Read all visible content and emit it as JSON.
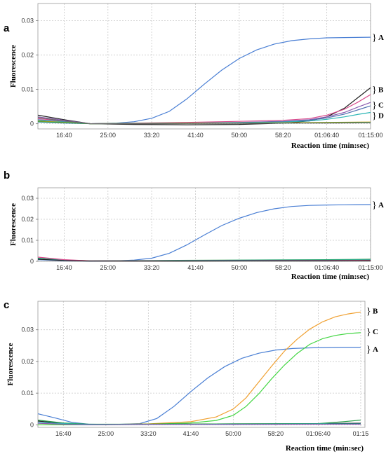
{
  "chart_data": [
    {
      "type": "line",
      "panel_label": "a",
      "ylabel": "Fluorescence",
      "xlabel": "Reaction time (min:sec)",
      "x_ticks": [
        "16:40",
        "25:00",
        "33:20",
        "41:40",
        "50:00",
        "58:20",
        "01:06:40",
        "01:15:00"
      ],
      "x_tick_seconds": [
        1000,
        1500,
        2000,
        2500,
        3000,
        3500,
        4000,
        4500
      ],
      "xlim": [
        700,
        4500
      ],
      "ylim": [
        -0.0015,
        0.035
      ],
      "y_ticks": [
        0,
        0.01,
        0.02,
        0.03
      ],
      "y_tick_labels": [
        "0",
        "0.01",
        "0.02",
        "0.03"
      ],
      "grid": true,
      "series": [
        {
          "group": "A",
          "color": "#4a7fd4",
          "x": [
            700,
            1000,
            1300,
            1600,
            1800,
            2000,
            2200,
            2400,
            2600,
            2800,
            3000,
            3200,
            3400,
            3600,
            3800,
            4000,
            4200,
            4500
          ],
          "y": [
            0.0005,
            0.0002,
            0.0,
            0.0002,
            0.0006,
            0.0016,
            0.0036,
            0.0072,
            0.0115,
            0.0156,
            0.019,
            0.0215,
            0.0232,
            0.0242,
            0.0247,
            0.025,
            0.0251,
            0.0252
          ]
        },
        {
          "group": "B",
          "color": "#202020",
          "x": [
            700,
            1000,
            1300,
            1800,
            2400,
            3000,
            3500,
            3800,
            4000,
            4200,
            4350,
            4500
          ],
          "y": [
            0.0025,
            0.0012,
            0.0,
            -0.0002,
            -0.0003,
            -0.0002,
            0.0002,
            0.0008,
            0.002,
            0.0045,
            0.0075,
            0.0105
          ]
        },
        {
          "group": "B",
          "color": "#d94a8c",
          "x": [
            700,
            1000,
            1300,
            1800,
            2400,
            3000,
            3500,
            3800,
            4000,
            4200,
            4350,
            4500
          ],
          "y": [
            0.0015,
            0.0008,
            0.0,
            0.0002,
            0.0004,
            0.0007,
            0.001,
            0.0015,
            0.0025,
            0.0042,
            0.0062,
            0.0085
          ]
        },
        {
          "group": "C",
          "color": "#8a5cb0",
          "x": [
            700,
            1000,
            1300,
            1800,
            2400,
            3000,
            3500,
            3800,
            4000,
            4200,
            4350,
            4500
          ],
          "y": [
            0.002,
            0.001,
            0.0,
            0.0001,
            0.0002,
            0.0004,
            0.0007,
            0.0012,
            0.002,
            0.0033,
            0.0048,
            0.0062
          ]
        },
        {
          "group": "C",
          "color": "#4f6fb0",
          "x": [
            700,
            1000,
            1300,
            1800,
            2400,
            3000,
            3500,
            3800,
            4000,
            4200,
            4350,
            4500
          ],
          "y": [
            0.0012,
            0.0006,
            0.0,
            0.0001,
            0.0002,
            0.0003,
            0.0006,
            0.001,
            0.0017,
            0.0028,
            0.004,
            0.0052
          ]
        },
        {
          "group": "D",
          "color": "#2bb5b5",
          "x": [
            700,
            1000,
            1300,
            1800,
            2400,
            3000,
            3500,
            3800,
            4000,
            4200,
            4350,
            4500
          ],
          "y": [
            0.001,
            0.0005,
            0.0,
            0.0001,
            0.0002,
            0.0003,
            0.0005,
            0.0008,
            0.0013,
            0.002,
            0.0027,
            0.0033
          ]
        },
        {
          "group": "D",
          "color": "#c8a000",
          "x": [
            700,
            1000,
            1300,
            1800,
            2400,
            3000,
            3500,
            4000,
            4500
          ],
          "y": [
            0.0008,
            0.0004,
            0.0,
            0.0001,
            0.0002,
            0.0002,
            0.0003,
            0.0004,
            0.0005
          ]
        },
        {
          "group": "D",
          "color": "#2a9d4a",
          "x": [
            700,
            1000,
            1300,
            1800,
            2400,
            3000,
            3500,
            4000,
            4500
          ],
          "y": [
            0.0006,
            0.0003,
            0.0,
            0.0001,
            0.0001,
            0.0002,
            0.0002,
            0.0003,
            0.0004
          ]
        },
        {
          "group": "D",
          "color": "#6a6a6a",
          "x": [
            700,
            1000,
            1300,
            1800,
            2400,
            3000,
            3500,
            4000,
            4500
          ],
          "y": [
            0.0018,
            0.0008,
            0.0,
            0.0,
            0.0001,
            0.0001,
            0.0002,
            0.0002,
            0.0003
          ]
        }
      ],
      "group_labels": [
        {
          "text": "A",
          "y": 0.0252
        },
        {
          "text": "B",
          "y": 0.01
        },
        {
          "text": "C",
          "y": 0.0055
        },
        {
          "text": "D",
          "y": 0.0025
        }
      ]
    },
    {
      "type": "line",
      "panel_label": "b",
      "ylabel": "Fluorescence",
      "xlabel": "Reaction time (min:sec)",
      "x_ticks": [
        "16:40",
        "25:00",
        "33:20",
        "41:40",
        "50:00",
        "58:20",
        "01:06:40",
        "01:15:00"
      ],
      "x_tick_seconds": [
        1000,
        1500,
        2000,
        2500,
        3000,
        3500,
        4000,
        4500
      ],
      "xlim": [
        700,
        4500
      ],
      "ylim": [
        0,
        0.035
      ],
      "y_ticks": [
        0,
        0.01,
        0.02,
        0.03
      ],
      "y_tick_labels": [
        "0",
        "0.01",
        "0.02",
        "0.03"
      ],
      "grid": true,
      "series": [
        {
          "group": "A",
          "color": "#4a7fd4",
          "x": [
            700,
            1000,
            1300,
            1600,
            1800,
            2000,
            2200,
            2400,
            2600,
            2800,
            3000,
            3200,
            3400,
            3600,
            3800,
            4000,
            4200,
            4500
          ],
          "y": [
            0.0008,
            0.0003,
            0.0001,
            0.0002,
            0.0006,
            0.0015,
            0.0038,
            0.0078,
            0.0125,
            0.017,
            0.0205,
            0.0232,
            0.025,
            0.0261,
            0.0266,
            0.0268,
            0.0269,
            0.027
          ]
        },
        {
          "color": "#2a9d4a",
          "x": [
            700,
            1000,
            1300,
            2000,
            3000,
            4000,
            4500
          ],
          "y": [
            0.0015,
            0.0006,
            0.0003,
            0.0004,
            0.0006,
            0.0008,
            0.001
          ]
        },
        {
          "color": "#2bb5b5",
          "x": [
            700,
            1000,
            1300,
            2000,
            3000,
            4000,
            4500
          ],
          "y": [
            0.0012,
            0.0005,
            0.0002,
            0.0003,
            0.0005,
            0.0006,
            0.0007
          ]
        },
        {
          "color": "#d94a8c",
          "x": [
            700,
            1000,
            1300,
            2000,
            3000,
            4000,
            4500
          ],
          "y": [
            0.002,
            0.0008,
            0.0002,
            0.0002,
            0.0003,
            0.0004,
            0.0005
          ]
        },
        {
          "color": "#202020",
          "x": [
            700,
            1000,
            1300,
            2000,
            3000,
            4000,
            4500
          ],
          "y": [
            0.001,
            0.0004,
            0.0001,
            0.0001,
            0.0002,
            0.0002,
            0.0003
          ]
        }
      ],
      "group_labels": [
        {
          "text": "A",
          "y": 0.027
        }
      ]
    },
    {
      "type": "line",
      "panel_label": "c",
      "ylabel": "Fluorescence",
      "xlabel": "Reaction time (min:sec)",
      "x_ticks": [
        "16:40",
        "25:00",
        "33:20",
        "41:40",
        "50:00",
        "58:20",
        "01:06:40",
        "01:15"
      ],
      "x_tick_seconds": [
        1000,
        1500,
        2000,
        2500,
        3000,
        3500,
        4000,
        4500
      ],
      "xlim": [
        700,
        4550
      ],
      "ylim": [
        -0.0008,
        0.039
      ],
      "y_ticks": [
        0,
        0.01,
        0.02,
        0.03
      ],
      "y_tick_labels": [
        "0",
        "0.01",
        "0.02",
        "0.03"
      ],
      "grid": true,
      "series": [
        {
          "group": "A",
          "color": "#4a7fd4",
          "x": [
            700,
            900,
            1100,
            1300,
            1600,
            1900,
            2100,
            2300,
            2500,
            2700,
            2900,
            3100,
            3300,
            3500,
            3700,
            3900,
            4100,
            4300,
            4500
          ],
          "y": [
            0.0035,
            0.0022,
            0.0008,
            0.0002,
            0.0001,
            0.0004,
            0.002,
            0.0058,
            0.0105,
            0.0148,
            0.0184,
            0.021,
            0.0226,
            0.0236,
            0.0241,
            0.0243,
            0.0244,
            0.0245,
            0.0245
          ]
        },
        {
          "group": "B",
          "color": "#f0a030",
          "x": [
            700,
            1300,
            2000,
            2500,
            2800,
            3000,
            3150,
            3300,
            3450,
            3600,
            3750,
            3900,
            4050,
            4200,
            4350,
            4500
          ],
          "y": [
            0.0,
            0.0,
            0.0003,
            0.001,
            0.0025,
            0.005,
            0.0085,
            0.0135,
            0.0185,
            0.0232,
            0.027,
            0.0302,
            0.0325,
            0.0341,
            0.035,
            0.0356
          ]
        },
        {
          "group": "C",
          "color": "#44d644",
          "x": [
            700,
            1300,
            2000,
            2500,
            2800,
            3000,
            3150,
            3300,
            3450,
            3600,
            3750,
            3900,
            4050,
            4200,
            4350,
            4500
          ],
          "y": [
            0.0,
            0.0,
            0.0002,
            0.0006,
            0.0014,
            0.003,
            0.0058,
            0.0098,
            0.0145,
            0.0188,
            0.0225,
            0.0254,
            0.0272,
            0.0282,
            0.0288,
            0.0291
          ]
        },
        {
          "color": "#202020",
          "x": [
            700,
            1000,
            1300,
            2000,
            3000,
            4000,
            4500
          ],
          "y": [
            0.0012,
            0.0005,
            0.0001,
            0.0002,
            0.0003,
            0.0004,
            0.0005
          ]
        },
        {
          "color": "#2a9d4a",
          "x": [
            700,
            1000,
            1300,
            2000,
            3000,
            4000,
            4300,
            4500
          ],
          "y": [
            0.0015,
            0.0006,
            0.0002,
            0.0002,
            0.0003,
            0.0004,
            0.001,
            0.0015
          ]
        },
        {
          "color": "#2bb5b5",
          "x": [
            700,
            1000,
            1300,
            2000,
            3000,
            4000,
            4500
          ],
          "y": [
            0.0008,
            0.0004,
            0.0001,
            0.0001,
            0.0002,
            0.0003,
            0.0003
          ]
        },
        {
          "color": "#8a5cb0",
          "x": [
            700,
            1000,
            1300,
            2000,
            3000,
            4000,
            4500
          ],
          "y": [
            0.0005,
            0.0002,
            0.0,
            0.0001,
            0.0001,
            0.0002,
            0.0002
          ]
        }
      ],
      "group_labels": [
        {
          "text": "B",
          "y": 0.036
        },
        {
          "text": "C",
          "y": 0.0295
        },
        {
          "text": "A",
          "y": 0.024
        }
      ]
    }
  ]
}
